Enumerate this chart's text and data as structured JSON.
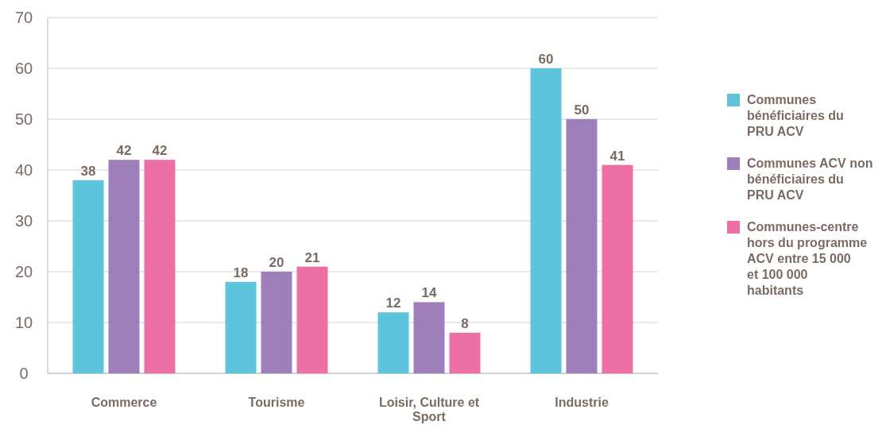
{
  "chart_data": {
    "type": "bar",
    "categories": [
      "Commerce",
      "Tourisme",
      "Loisir, Culture et Sport",
      "Industrie"
    ],
    "series": [
      {
        "name": "Communes bénéficiaires du PRU ACV",
        "color": "#5ec4db",
        "values": [
          38,
          18,
          12,
          60
        ]
      },
      {
        "name": "Communes ACV non bénéficiaires du PRU ACV",
        "color": "#9e7fba",
        "values": [
          42,
          20,
          14,
          50
        ]
      },
      {
        "name": "Communes-centre hors du programme ACV entre 15 000 et 100 000 habitants",
        "color": "#ec6fa6",
        "values": [
          42,
          21,
          8,
          41
        ]
      }
    ],
    "ylim": [
      0,
      70
    ],
    "yticks": [
      0,
      10,
      20,
      30,
      40,
      50,
      60,
      70
    ],
    "grid": "y",
    "legend": "right",
    "data_labels": true
  }
}
